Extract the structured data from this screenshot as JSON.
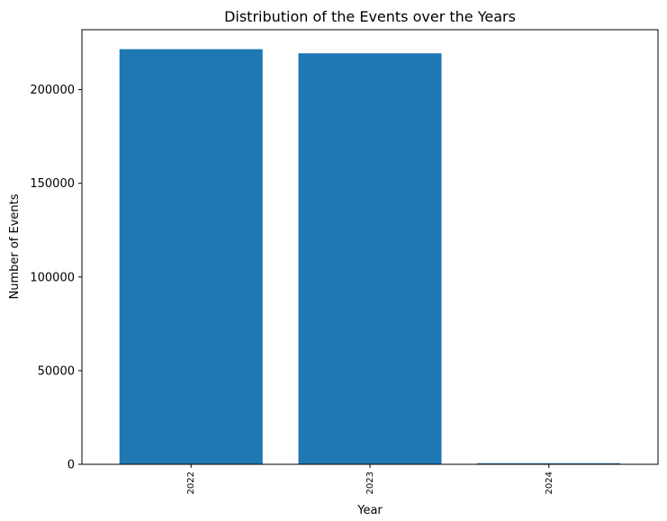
{
  "chart_data": {
    "type": "bar",
    "title": "Distribution of the Events over the Years",
    "xlabel": "Year",
    "ylabel": "Number of Events",
    "categories": [
      "2022",
      "2023",
      "2024"
    ],
    "values": [
      221600,
      219400,
      600
    ],
    "ylim": [
      0,
      232000
    ],
    "yticks": [
      0,
      50000,
      100000,
      150000,
      200000
    ],
    "ytick_labels": [
      "0",
      "50000",
      "100000",
      "150000",
      "200000"
    ],
    "grid": false,
    "bar_color": "#1f77b4"
  }
}
